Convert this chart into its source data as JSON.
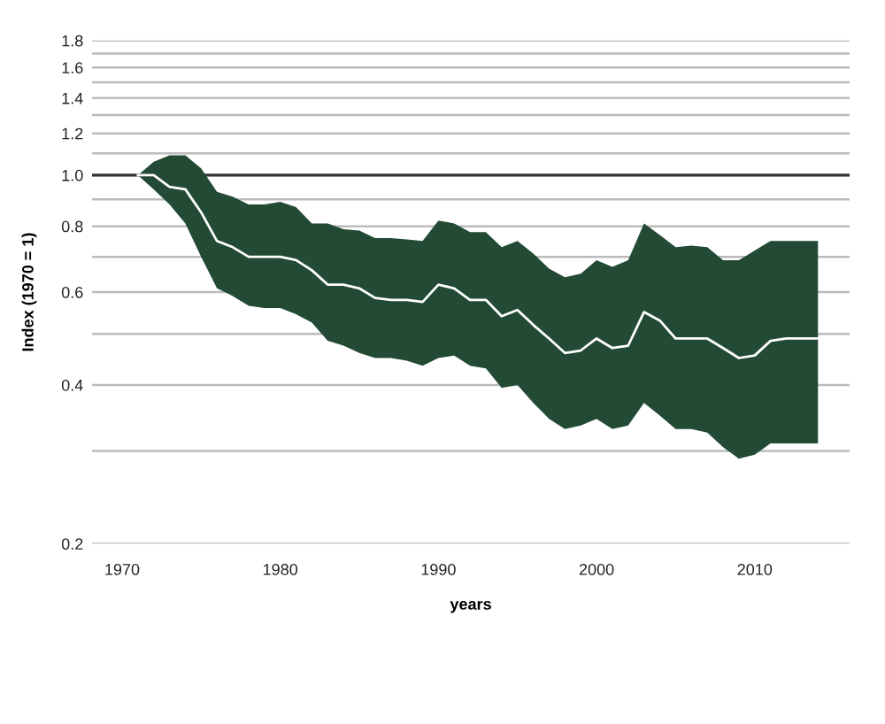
{
  "chart_data": {
    "type": "line",
    "xlabel": "years",
    "ylabel": "Index (1970 = 1)",
    "x": [
      1971,
      1972,
      1973,
      1974,
      1975,
      1976,
      1977,
      1978,
      1979,
      1980,
      1981,
      1982,
      1983,
      1984,
      1985,
      1986,
      1987,
      1988,
      1989,
      1990,
      1991,
      1992,
      1993,
      1994,
      1995,
      1996,
      1997,
      1998,
      1999,
      2000,
      2001,
      2002,
      2003,
      2004,
      2005,
      2006,
      2007,
      2008,
      2009,
      2010,
      2011,
      2012,
      2013,
      2014
    ],
    "series": [
      {
        "color": "#ffffff",
        "values": [
          1.0,
          1.0,
          0.95,
          0.94,
          0.85,
          0.75,
          0.73,
          0.7,
          0.7,
          0.7,
          0.69,
          0.66,
          0.62,
          0.62,
          0.61,
          0.585,
          0.58,
          0.58,
          0.575,
          0.62,
          0.61,
          0.58,
          0.58,
          0.54,
          0.555,
          0.52,
          0.49,
          0.46,
          0.465,
          0.49,
          0.47,
          0.475,
          0.55,
          0.53,
          0.49,
          0.49,
          0.49,
          0.47,
          0.45,
          0.455,
          0.485,
          0.49,
          0.49,
          0.49
        ],
        "upper": [
          1.0,
          1.06,
          1.09,
          1.09,
          1.03,
          0.93,
          0.91,
          0.88,
          0.88,
          0.89,
          0.87,
          0.81,
          0.81,
          0.79,
          0.785,
          0.76,
          0.76,
          0.755,
          0.75,
          0.82,
          0.81,
          0.78,
          0.78,
          0.73,
          0.75,
          0.71,
          0.665,
          0.64,
          0.65,
          0.69,
          0.67,
          0.69,
          0.81,
          0.77,
          0.73,
          0.735,
          0.73,
          0.69,
          0.69,
          0.72,
          0.75,
          0.75,
          0.75,
          0.75
        ],
        "lower": [
          1.0,
          0.94,
          0.88,
          0.81,
          0.7,
          0.61,
          0.59,
          0.565,
          0.56,
          0.56,
          0.545,
          0.525,
          0.485,
          0.475,
          0.46,
          0.45,
          0.45,
          0.445,
          0.435,
          0.45,
          0.455,
          0.435,
          0.43,
          0.395,
          0.4,
          0.37,
          0.345,
          0.33,
          0.335,
          0.345,
          0.33,
          0.335,
          0.37,
          0.35,
          0.33,
          0.33,
          0.325,
          0.305,
          0.29,
          0.295,
          0.31,
          0.31,
          0.31,
          0.31
        ]
      }
    ],
    "log": true,
    "xlim": [
      1968.1,
      2016
    ],
    "xticks": [
      1970,
      1980,
      1990,
      2000,
      2010
    ],
    "ylim": [
      0.2,
      1.8
    ],
    "yticks": [
      0.2,
      {
        "value": 0.3,
        "label": null
      },
      0.4,
      {
        "value": 0.5,
        "label": null
      },
      0.6,
      {
        "value": 0.7,
        "label": null
      },
      0.8,
      {
        "value": 0.9,
        "label": null
      },
      {
        "value": 1.0,
        "label": "1.0"
      },
      {
        "value": 1.1,
        "label": null
      },
      1.2,
      {
        "value": 1.3,
        "label": null
      },
      1.4,
      {
        "value": 1.5,
        "label": null
      },
      1.6,
      {
        "value": 1.7,
        "label": null
      },
      1.8
    ],
    "grid": "y",
    "ref_lines": [
      {
        "axis": "y",
        "value": 1.0,
        "color": "#333333"
      }
    ]
  }
}
